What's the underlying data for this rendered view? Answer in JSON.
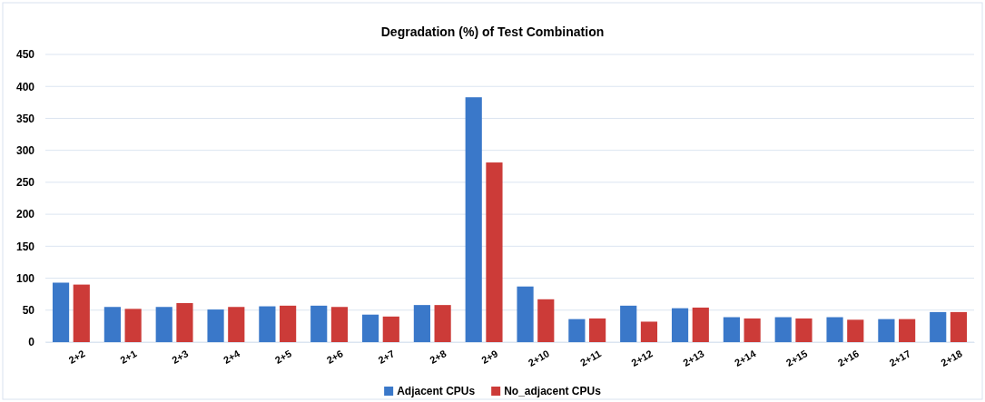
{
  "chart_data": {
    "type": "bar",
    "title": "Degradation (%) of Test Combination",
    "categories": [
      "2+2",
      "2+1",
      "2+3",
      "2+4",
      "2+5",
      "2+6",
      "2+7",
      "2+8",
      "2+9",
      "2+10",
      "2+11",
      "2+12",
      "2+13",
      "2+14",
      "2+15",
      "2+16",
      "2+17",
      "2+18"
    ],
    "series": [
      {
        "name": "Adjacent CPUs",
        "color": "#3a78c9",
        "values": [
          93,
          55,
          55,
          51,
          56,
          57,
          43,
          58,
          383,
          87,
          36,
          57,
          53,
          39,
          39,
          39,
          36,
          47
        ]
      },
      {
        "name": "No_adjacent CPUs",
        "color": "#cc3b38",
        "values": [
          90,
          52,
          61,
          55,
          57,
          55,
          40,
          58,
          281,
          67,
          37,
          32,
          54,
          37,
          37,
          35,
          36,
          47
        ]
      }
    ],
    "ylim": [
      0,
      450
    ],
    "yticks": [
      0,
      50,
      100,
      150,
      200,
      250,
      300,
      350,
      400,
      450
    ],
    "grid": "y",
    "legend": "bottom"
  }
}
